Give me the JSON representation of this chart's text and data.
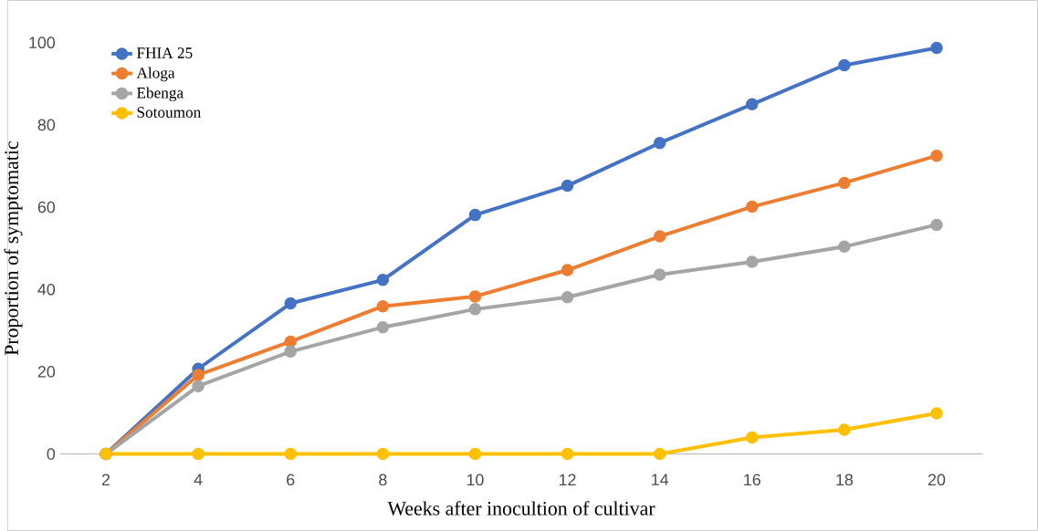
{
  "chart_data": {
    "type": "line",
    "xlabel": "Weeks after inocultion of cultivar",
    "ylabel": "Proportion of symptomatic",
    "categories": [
      "2",
      "4",
      "6",
      "8",
      "10",
      "12",
      "14",
      "16",
      "18",
      "20"
    ],
    "ylim": [
      0,
      100
    ],
    "yticks": [
      0,
      20,
      40,
      60,
      80,
      100
    ],
    "legend": "top left",
    "marker": "circle",
    "line_style": "solid",
    "series": [
      {
        "name": "FHIA 25",
        "color": "#4472c4",
        "values": [
          0,
          20.7,
          36.6,
          42.3,
          58.1,
          65.2,
          75.6,
          85.0,
          94.5,
          98.7
        ]
      },
      {
        "name": "Aloga",
        "color": "#ed7d31",
        "values": [
          0,
          19.2,
          27.3,
          35.9,
          38.3,
          44.7,
          52.9,
          60.1,
          65.9,
          72.5
        ]
      },
      {
        "name": "Ebenga",
        "color": "#a5a5a5",
        "values": [
          0,
          16.5,
          24.9,
          30.8,
          35.2,
          38.1,
          43.6,
          46.7,
          50.4,
          55.7
        ]
      },
      {
        "name": "Sotoumon",
        "color": "#ffc000",
        "values": [
          0,
          0,
          0,
          0,
          0,
          0,
          0,
          4.0,
          5.9,
          9.9
        ]
      }
    ]
  }
}
